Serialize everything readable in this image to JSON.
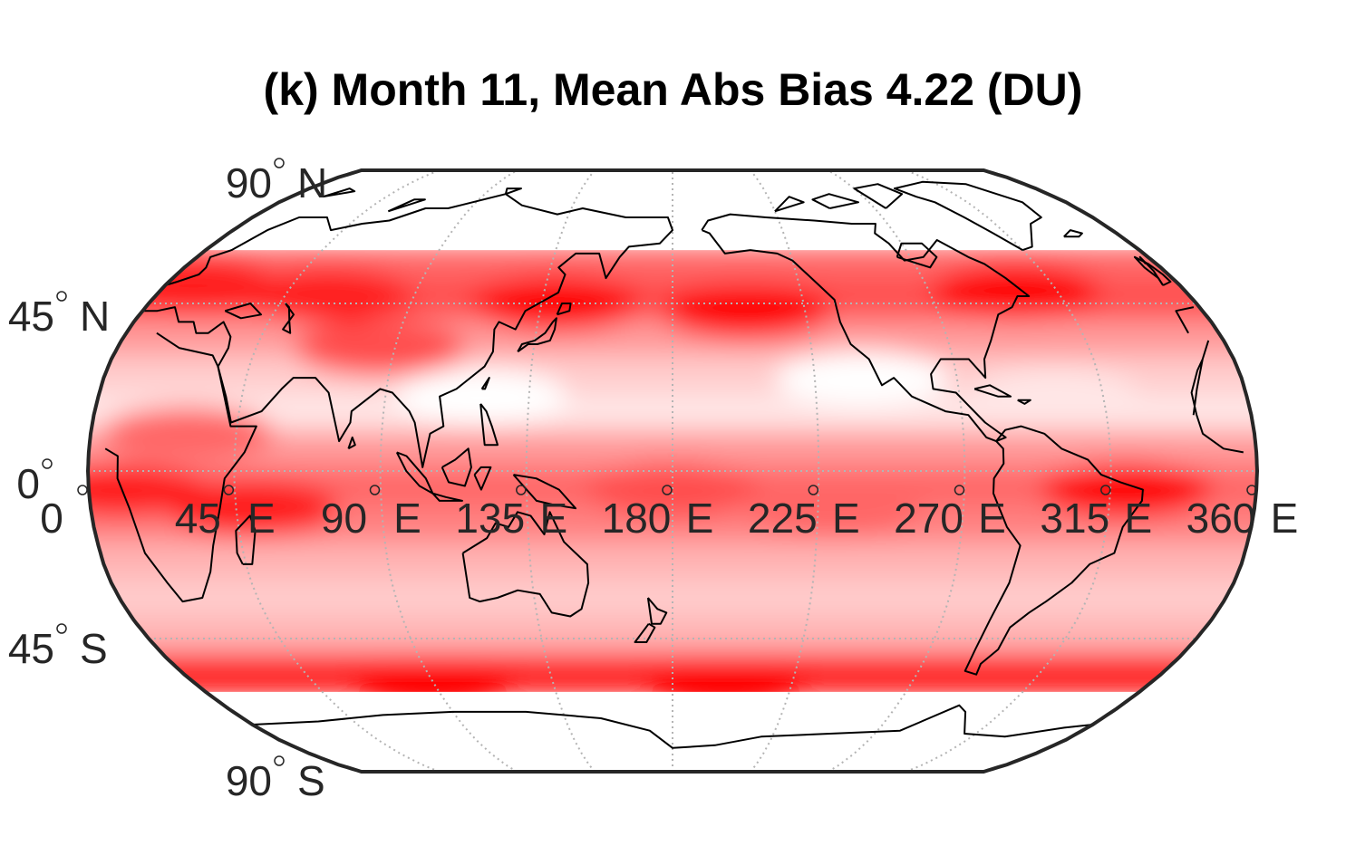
{
  "title": "(k) Month 11, Mean Abs Bias 4.22 (DU)",
  "projection": "Robinson",
  "colormap": [
    "#ffffff",
    "#ffe6e6",
    "#ffcccc",
    "#ffb3b3",
    "#ff9999",
    "#ff8080",
    "#ff6666",
    "#ff4d4d",
    "#ff1a1a",
    "#ff0000"
  ],
  "coastline_color": "#000000",
  "grid_color": "#b4b4b4",
  "lat_labels": [
    {
      "lat": 90,
      "text": "90",
      "hemi": "N"
    },
    {
      "lat": 45,
      "text": "45",
      "hemi": "N"
    },
    {
      "lat": 0,
      "text": "0",
      "hemi": ""
    },
    {
      "lat": -45,
      "text": "45",
      "hemi": "S"
    },
    {
      "lat": -90,
      "text": "90",
      "hemi": "S"
    }
  ],
  "lon_labels": [
    {
      "lon": 0,
      "text": "0",
      "hemi": ""
    },
    {
      "lon": 45,
      "text": "45",
      "hemi": "E"
    },
    {
      "lon": 90,
      "text": "90",
      "hemi": "E"
    },
    {
      "lon": 135,
      "text": "135",
      "hemi": "E"
    },
    {
      "lon": 180,
      "text": "180",
      "hemi": "E"
    },
    {
      "lon": 225,
      "text": "225",
      "hemi": "E"
    },
    {
      "lon": 270,
      "text": "270",
      "hemi": "E"
    },
    {
      "lon": 315,
      "text": "315",
      "hemi": "E"
    },
    {
      "lon": 360,
      "text": "360",
      "hemi": "E"
    }
  ],
  "data_lat_range": [
    -60,
    60
  ],
  "bias_bands": [
    {
      "lat": 55,
      "level": 6
    },
    {
      "lat": 45,
      "level": 7
    },
    {
      "lat": 35,
      "level": 4
    },
    {
      "lat": 25,
      "level": 2
    },
    {
      "lat": 15,
      "level": 1
    },
    {
      "lat": 5,
      "level": 4
    },
    {
      "lat": -5,
      "level": 6
    },
    {
      "lat": -15,
      "level": 5
    },
    {
      "lat": -25,
      "level": 3
    },
    {
      "lat": -35,
      "level": 2
    },
    {
      "lat": -45,
      "level": 3
    },
    {
      "lat": -55,
      "level": 8
    }
  ],
  "hotspots": [
    {
      "lon": 300,
      "lat": 48,
      "level": 9
    },
    {
      "lon": 10,
      "lat": 50,
      "level": 8
    },
    {
      "lon": 140,
      "lat": 45,
      "level": 9
    },
    {
      "lon": 205,
      "lat": 43,
      "level": 9
    },
    {
      "lon": 85,
      "lat": 33,
      "level": 7
    },
    {
      "lon": 60,
      "lat": 47,
      "level": 8
    },
    {
      "lon": 320,
      "lat": -5,
      "level": 9
    },
    {
      "lon": 10,
      "lat": -5,
      "level": 8
    },
    {
      "lon": 50,
      "lat": -10,
      "level": 8
    },
    {
      "lon": 180,
      "lat": -5,
      "level": 7
    },
    {
      "lon": 230,
      "lat": -10,
      "level": 6
    },
    {
      "lon": 90,
      "lat": -57,
      "level": 9
    },
    {
      "lon": 200,
      "lat": -57,
      "level": 9
    },
    {
      "lon": 30,
      "lat": 10,
      "level": 6
    },
    {
      "lon": 300,
      "lat": 20,
      "level": 1
    },
    {
      "lon": 120,
      "lat": 20,
      "level": 0
    },
    {
      "lon": 240,
      "lat": 25,
      "level": 0
    }
  ]
}
